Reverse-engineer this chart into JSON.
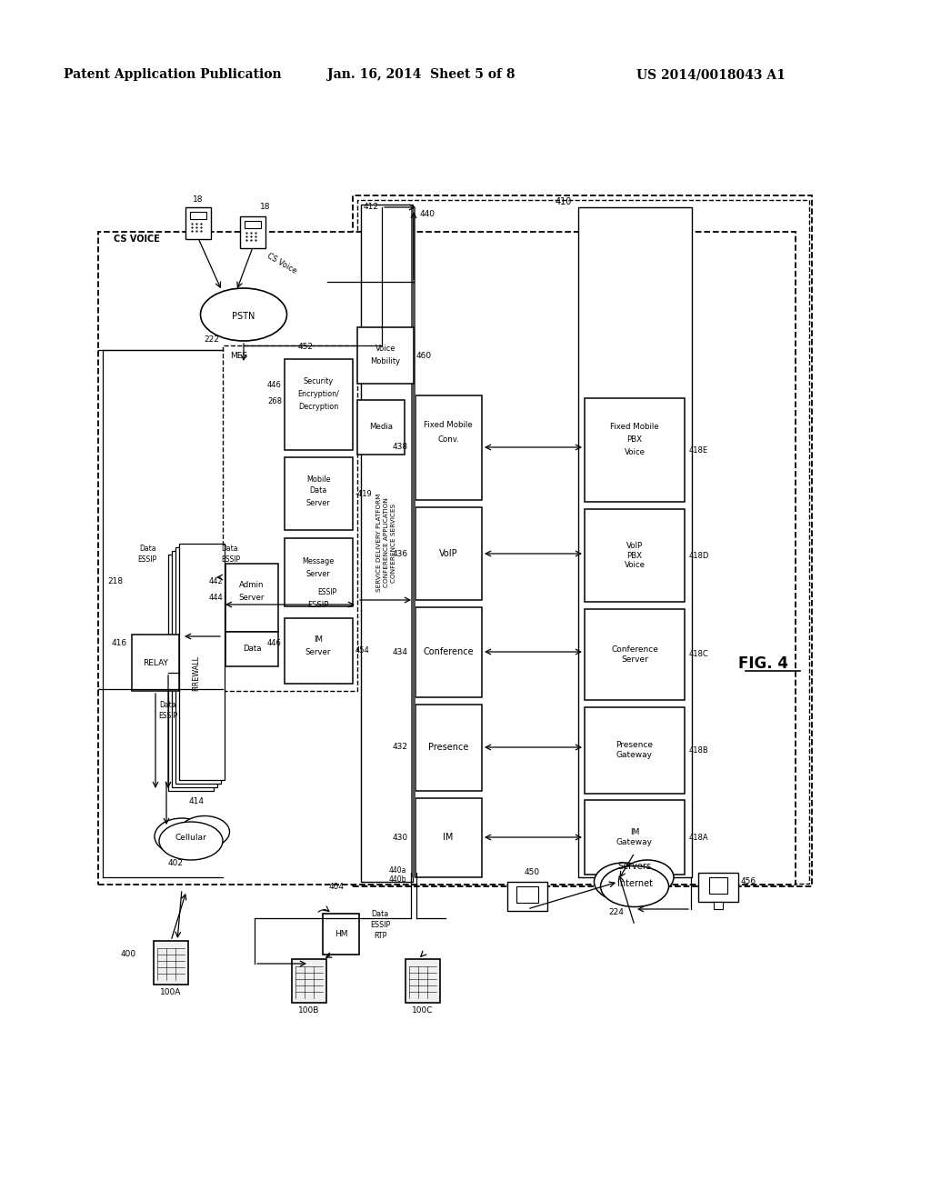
{
  "title_left": "Patent Application Publication",
  "title_center": "Jan. 16, 2014  Sheet 5 of 8",
  "title_right": "US 2014/0018043 A1",
  "fig_label": "FIG. 4",
  "bg": "#ffffff"
}
